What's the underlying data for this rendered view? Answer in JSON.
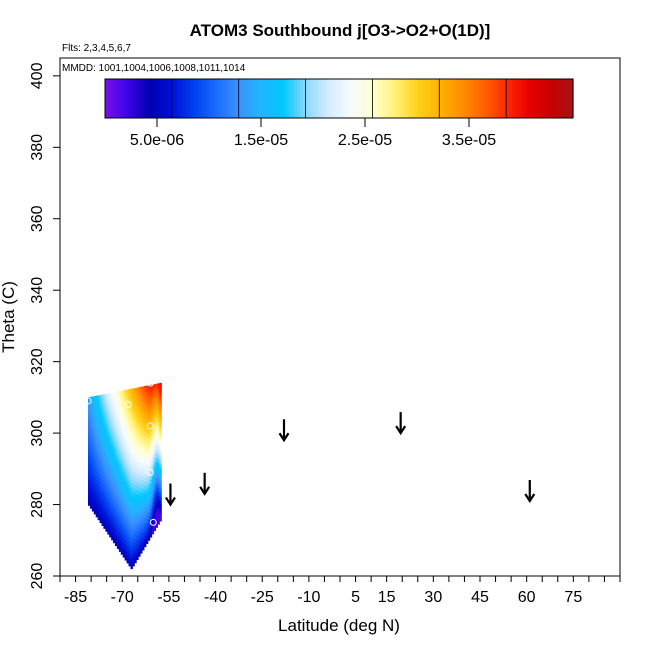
{
  "chart_data": {
    "type": "heatmap",
    "title": "ATOM3 Southbound j[O3->O2+O(1D)]",
    "flights_label": "Flts: 2,3,4,5,6,7",
    "dates_label": "MMDD: 1001,1004,1006,1008,1011,1014",
    "xlabel": "Latitude (deg N)",
    "ylabel": "Theta (C)",
    "xlim": [
      -90,
      90
    ],
    "ylim": [
      260,
      405
    ],
    "xticks": [
      -85,
      -70,
      -55,
      -40,
      -25,
      -10,
      5,
      15,
      30,
      45,
      60,
      75
    ],
    "yticks": [
      260,
      280,
      300,
      320,
      340,
      360,
      380,
      400
    ],
    "colorbar": {
      "range": [
        0,
        4.5e-05
      ],
      "ticks": [
        5e-06,
        1.5e-05,
        2.5e-05,
        3.5e-05
      ],
      "tick_labels": [
        "5.0e-06",
        "1.5e-05",
        "2.5e-05",
        "3.5e-05"
      ],
      "colors": [
        "#7a10ec",
        "#3c04e8",
        "#0000b0",
        "#0010d8",
        "#0040f0",
        "#1b6cff",
        "#3a92ff",
        "#1fb6ff",
        "#00c8ff",
        "#8ad8ff",
        "#d4ecff",
        "#f6fbff",
        "#ffffd0",
        "#fff27a",
        "#ffd21e",
        "#ffb300",
        "#ff8f00",
        "#ff6200",
        "#ff2a00",
        "#ea0000",
        "#c80000",
        "#a61414"
      ]
    },
    "field": {
      "value_bounds": [
        2e-06,
        4e-05
      ],
      "lat_range": [
        -81,
        -58
      ],
      "theta_range": [
        262,
        314
      ],
      "low_edge": "theta rises from about 262 near 67S to about 275 near 58S",
      "top_edge": "about 310 near 81S rising to 314 near 60S",
      "pattern": "low values (blue) at the southern edge, high values (red) at the upper northern side, white-yellow at mid levels"
    },
    "profile_points": [
      {
        "lat": -81,
        "theta": 309
      },
      {
        "lat": -68,
        "theta": 308
      },
      {
        "lat": -61,
        "theta": 302
      },
      {
        "lat": -61,
        "theta": 289
      },
      {
        "lat": -60,
        "theta": 275
      },
      {
        "lat": -61,
        "theta": 314
      }
    ],
    "profile_arrows": [
      {
        "lat": -54.5,
        "theta": 280
      },
      {
        "lat": -43.5,
        "theta": 283
      },
      {
        "lat": -18,
        "theta": 298
      },
      {
        "lat": 19.5,
        "theta": 300
      },
      {
        "lat": 61,
        "theta": 281
      }
    ]
  }
}
